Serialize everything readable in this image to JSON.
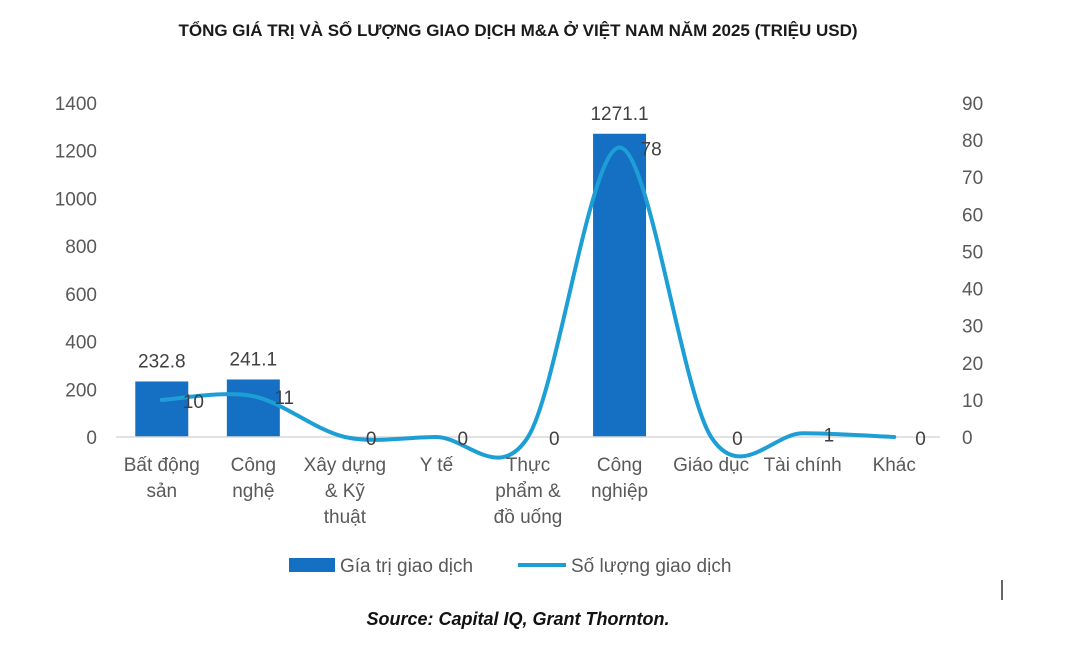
{
  "title": "TỔNG GIÁ TRỊ VÀ SỐ LƯỢNG GIAO DỊCH M&A Ở VIỆT NAM NĂM 2025 (TRIỆU USD)",
  "source": "Source: Capital IQ, Grant Thornton.",
  "colors": {
    "bar": "#1570c4",
    "line": "#1d9fd6",
    "axis": "#d9d9d9",
    "text": "#595959"
  },
  "chart_data": {
    "type": "bar",
    "categories": [
      [
        "Bất động",
        "sản"
      ],
      [
        "Công",
        "nghệ"
      ],
      [
        "Xây dựng",
        "& Kỹ",
        "thuật"
      ],
      [
        "Y tế"
      ],
      [
        "Thực",
        "phẩm &",
        "đồ uống"
      ],
      [
        "Công",
        "nghiệp"
      ],
      [
        "Giáo dục"
      ],
      [
        "Tài chính"
      ],
      [
        "Khác"
      ]
    ],
    "series": [
      {
        "name": "Gía trị giao dịch",
        "type": "bar",
        "axis": "left",
        "values": [
          232.8,
          241.1,
          null,
          null,
          null,
          1271.1,
          null,
          null,
          null
        ],
        "labels": [
          "232.8",
          "241.1",
          "",
          "",
          "",
          "1271.1",
          "",
          "",
          ""
        ]
      },
      {
        "name": "Số lượng giao dịch",
        "type": "line",
        "axis": "right",
        "values": [
          10,
          11,
          0,
          0,
          0,
          78,
          0,
          1,
          0
        ],
        "labels": [
          "10",
          "11",
          "0",
          "0",
          "0",
          "78",
          "0",
          "1",
          "0"
        ]
      }
    ],
    "y_left": {
      "min": 0,
      "max": 1400,
      "ticks": [
        0,
        200,
        400,
        600,
        800,
        1000,
        1200,
        1400
      ]
    },
    "y_right": {
      "min": 0,
      "max": 90,
      "ticks": [
        0,
        10,
        20,
        30,
        40,
        50,
        60,
        70,
        80,
        90
      ]
    },
    "legend": "bottom",
    "grid": false
  }
}
